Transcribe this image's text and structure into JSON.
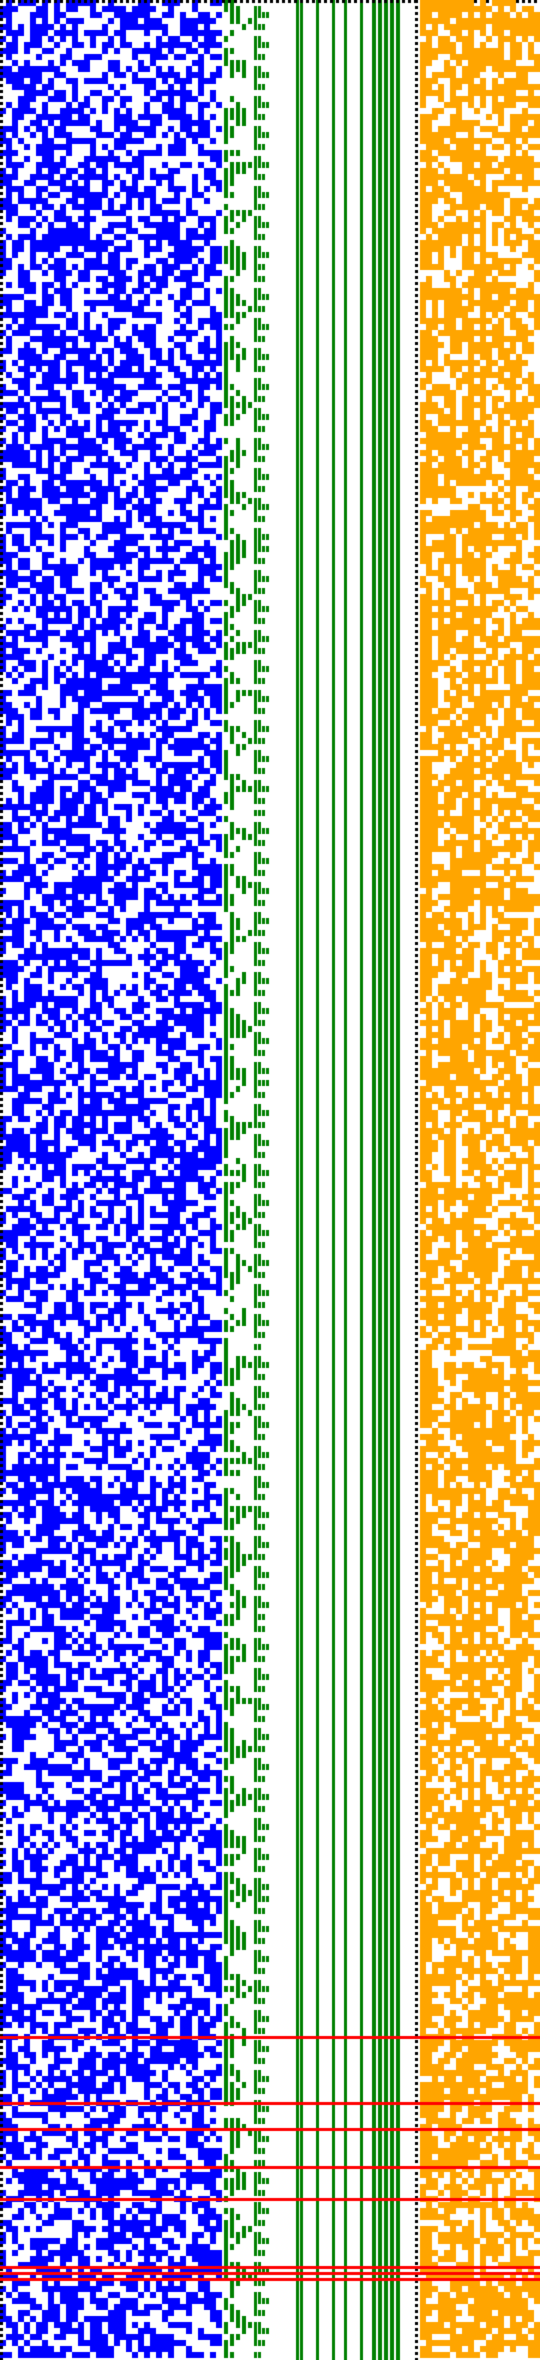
{
  "image": {
    "description_kind": "bit-pattern visualization",
    "panels": [
      {
        "name": "blue-noise-panel",
        "color": "#0000ff",
        "density": 0.55
      },
      {
        "name": "green-staircase-panel",
        "color": "#008000"
      },
      {
        "name": "orange-pattern-panel",
        "color": "#ffa500",
        "density": 0.6
      }
    ],
    "separator_color": "#000000",
    "marker_color": "#ff0000",
    "background": "#ffffff"
  }
}
